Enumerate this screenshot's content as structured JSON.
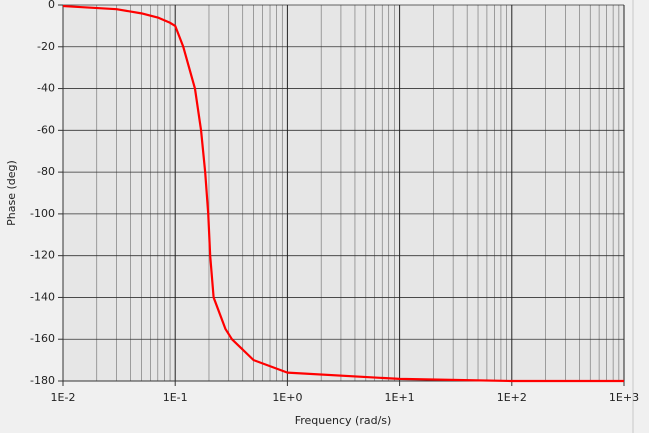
{
  "chart_data": {
    "type": "line",
    "xlabel": "Frequency (rad/s)",
    "ylabel": "Phase (deg)",
    "xscale": "log",
    "grid": true,
    "color": "#ff0000",
    "x": [
      0.01,
      0.03,
      0.05,
      0.07,
      0.09,
      0.1,
      0.118,
      0.15,
      0.17,
      0.185,
      0.197,
      0.205,
      0.22,
      0.28,
      0.32,
      0.5,
      1,
      10,
      100,
      1000
    ],
    "values": [
      -0.5,
      -2,
      -4,
      -6,
      -8.5,
      -10,
      -20,
      -40,
      -60,
      -80,
      -100,
      -120,
      -140,
      -155,
      -160,
      -170,
      -176,
      -179,
      -180,
      -180
    ],
    "xlim": [
      0.01,
      1000
    ],
    "xticks": [
      {
        "value": 0.01,
        "label": "1E-2"
      },
      {
        "value": 0.1,
        "label": "1E-1"
      },
      {
        "value": 1,
        "label": "1E+0"
      },
      {
        "value": 10,
        "label": "1E+1"
      },
      {
        "value": 100,
        "label": "1E+2"
      },
      {
        "value": 1000,
        "label": "1E+3"
      }
    ],
    "ylim": [
      -180,
      0
    ],
    "yticks": [
      0,
      -20,
      -40,
      -60,
      -80,
      -100,
      -120,
      -140,
      -160,
      -180
    ]
  }
}
